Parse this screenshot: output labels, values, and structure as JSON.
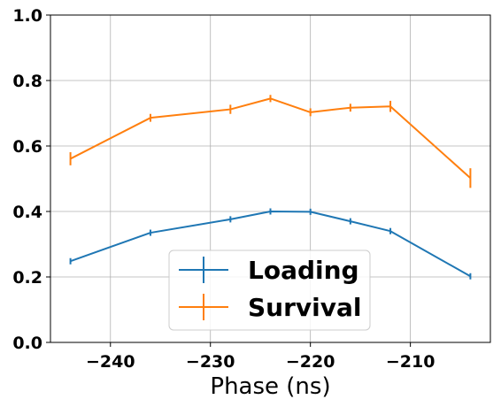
{
  "chart_data": {
    "type": "line",
    "title": "",
    "xlabel": "Phase (ns)",
    "ylabel": "",
    "xlim": [
      -246,
      -202
    ],
    "ylim": [
      0.0,
      1.0
    ],
    "xticks": [
      -240,
      -230,
      -220,
      -210
    ],
    "xtick_labels": [
      "−240",
      "−230",
      "−220",
      "−210"
    ],
    "yticks": [
      0.0,
      0.2,
      0.4,
      0.6,
      0.8,
      1.0
    ],
    "ytick_labels": [
      "0.0",
      "0.2",
      "0.4",
      "0.6",
      "0.8",
      "1.0"
    ],
    "grid": true,
    "legend_position": "bottom-center",
    "series": [
      {
        "name": "Loading",
        "color": "#1f77b4",
        "x": [
          -244,
          -236,
          -228,
          -224,
          -220,
          -216,
          -212,
          -204
        ],
        "y": [
          0.248,
          0.335,
          0.376,
          0.4,
          0.399,
          0.37,
          0.34,
          0.202
        ],
        "yerr": [
          0.007,
          0.005,
          0.006,
          0.005,
          0.009,
          0.005,
          0.006,
          0.009
        ]
      },
      {
        "name": "Survival",
        "color": "#ff7f0e",
        "x": [
          -244,
          -236,
          -228,
          -224,
          -220,
          -216,
          -212,
          -204
        ],
        "y": [
          0.561,
          0.686,
          0.712,
          0.745,
          0.703,
          0.717,
          0.721,
          0.502
        ],
        "yerr": [
          0.02,
          0.012,
          0.014,
          0.011,
          0.012,
          0.012,
          0.017,
          0.03
        ]
      }
    ]
  }
}
